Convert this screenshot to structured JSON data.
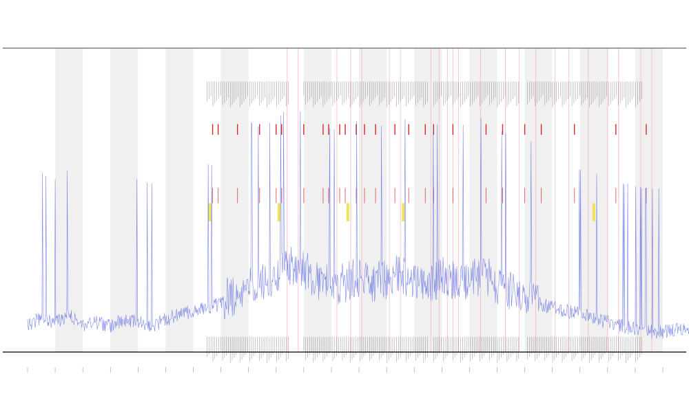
{
  "chart_data": {
    "type": "line",
    "title": "",
    "xlabel": "",
    "ylabel": "",
    "ylim": [
      0,
      100
    ],
    "grid": false,
    "legend": "none",
    "colors": {
      "signal": "#4f5fe0",
      "band": "#e8e8e8",
      "pink_marker": "#f4b6c2",
      "red_marker": "#d62728",
      "yellow_marker": "#f2e13a",
      "tick_marker": "#555555",
      "axis": "#222222"
    },
    "x_ticks": [
      "",
      "",
      "",
      "",
      "",
      "",
      "",
      "",
      "",
      "",
      "",
      "",
      "",
      "",
      "",
      "",
      "",
      "",
      "",
      "",
      "",
      "",
      "",
      ""
    ],
    "bands": [
      [
        1,
        2
      ],
      [
        3,
        4
      ],
      [
        5,
        6
      ],
      [
        7,
        8
      ],
      [
        10,
        11
      ],
      [
        12,
        13
      ],
      [
        14,
        15
      ],
      [
        16,
        17
      ],
      [
        18,
        19
      ],
      [
        20,
        21
      ],
      [
        22,
        23
      ]
    ],
    "series": [
      {
        "color": "#4f5fe0",
        "values": [
          [
            0,
            8
          ],
          [
            0.5,
            11
          ],
          [
            1,
            9
          ],
          [
            1.5,
            12
          ],
          [
            2,
            8
          ],
          [
            2.5,
            9
          ],
          [
            3,
            8
          ],
          [
            3.5,
            10
          ],
          [
            4,
            9
          ],
          [
            4.5,
            8
          ],
          [
            5,
            10
          ],
          [
            5.5,
            12
          ],
          [
            6,
            13
          ],
          [
            6.5,
            14
          ],
          [
            7,
            15
          ],
          [
            7.5,
            17
          ],
          [
            8,
            22
          ],
          [
            8.5,
            21
          ],
          [
            9,
            24
          ],
          [
            9.5,
            27
          ],
          [
            10,
            25
          ],
          [
            10.5,
            22
          ],
          [
            11,
            20
          ],
          [
            11.5,
            21
          ],
          [
            12,
            23
          ],
          [
            12.5,
            21
          ],
          [
            13,
            22
          ],
          [
            13.5,
            24
          ],
          [
            14,
            22
          ],
          [
            14.5,
            20
          ],
          [
            15,
            23
          ],
          [
            15.5,
            21
          ],
          [
            16,
            22
          ],
          [
            16.5,
            24
          ],
          [
            17,
            20
          ],
          [
            17.5,
            18
          ],
          [
            18,
            16
          ],
          [
            18.5,
            15
          ],
          [
            19,
            14
          ],
          [
            19.5,
            13
          ],
          [
            20,
            12
          ],
          [
            20.5,
            11
          ],
          [
            21,
            9
          ],
          [
            21.5,
            8
          ],
          [
            22,
            7
          ],
          [
            22.5,
            6
          ],
          [
            23,
            6
          ],
          [
            23.5,
            7
          ],
          [
            24,
            7
          ]
        ]
      }
    ],
    "markers": {
      "pink_x": [
        9.4,
        9.8,
        11.2,
        11.7,
        12.1,
        13.1,
        13.5,
        14.6,
        14.9,
        15.2,
        15.4,
        15.6,
        16.4,
        17.3,
        17.8,
        18.4,
        19.1,
        19.6,
        20.3,
        21.0,
        21.4,
        22.2,
        22.6
      ],
      "red_x": [
        6.7,
        6.9,
        7.6,
        8.4,
        9.0,
        9.2,
        10.0,
        10.7,
        10.9,
        11.3,
        11.5,
        11.9,
        12.2,
        12.6,
        13.3,
        13.8,
        14.4,
        14.7,
        15.4,
        16.6,
        17.2,
        18.0,
        18.6,
        19.8,
        21.3,
        22.4
      ],
      "yellow_x": [
        6.6,
        9.1,
        11.6,
        13.6,
        20.5
      ],
      "tick_ranges": [
        [
          6.5,
          9.5
        ],
        [
          10,
          14.5
        ],
        [
          14.7,
          17.8
        ],
        [
          18.1,
          22.3
        ]
      ]
    }
  }
}
